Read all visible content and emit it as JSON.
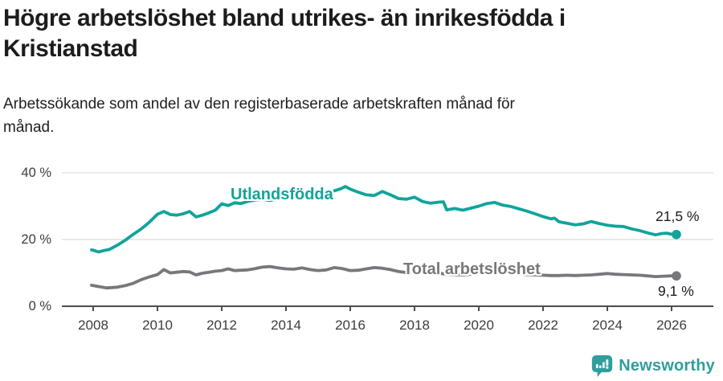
{
  "header": {
    "title": "Högre arbetslöshet bland utrikes- än inrikesfödda i Kristianstad",
    "subtitle": "Arbetssökande som andel av den registerbaserade arbetskraften månad för månad."
  },
  "footer": {
    "brand": "Newsworthy",
    "brand_color": "#2f9e9c",
    "logo_icon": "bar-chart-speech-bubble-icon"
  },
  "colors": {
    "accent_teal": "#10a49b",
    "neutral_gray": "#78777c",
    "axis": "#4d4d4d",
    "gridline": "#dcdcdc",
    "text": "#1c1c1c"
  },
  "chart_data": {
    "type": "line",
    "title": "Högre arbetslöshet bland utrikes- än inrikesfödda i Kristianstad",
    "subtitle": "Arbetssökande som andel av den registerbaserade arbetskraften månad för månad.",
    "unit": "%",
    "xlim": [
      2007.9,
      2026.4
    ],
    "ylim": [
      0,
      40
    ],
    "grid": "horizontal",
    "legend_position": "inline-labels",
    "y_ticks": [
      {
        "value": 0,
        "label": "0 %"
      },
      {
        "value": 20,
        "label": "20 %"
      },
      {
        "value": 40,
        "label": "40 %"
      }
    ],
    "x_ticks": [
      {
        "value": 2008,
        "label": "2008"
      },
      {
        "value": 2010,
        "label": "2010"
      },
      {
        "value": 2012,
        "label": "2012"
      },
      {
        "value": 2014,
        "label": "2014"
      },
      {
        "value": 2016,
        "label": "2016"
      },
      {
        "value": 2018,
        "label": "2018"
      },
      {
        "value": 2020,
        "label": "2020"
      },
      {
        "value": 2022,
        "label": "2022"
      },
      {
        "value": 2024,
        "label": "2024"
      },
      {
        "value": 2026,
        "label": "2026"
      }
    ],
    "series": [
      {
        "name": "Utlandsfödda",
        "color": "#10a49b",
        "end_label": "21,5 %",
        "end_value": 21.5,
        "points": [
          [
            2007.95,
            16.9
          ],
          [
            2008.0,
            16.8
          ],
          [
            2008.17,
            16.3
          ],
          [
            2008.33,
            16.7
          ],
          [
            2008.5,
            17.0
          ],
          [
            2008.75,
            18.3
          ],
          [
            2009.0,
            19.8
          ],
          [
            2009.25,
            21.6
          ],
          [
            2009.5,
            23.2
          ],
          [
            2009.75,
            25.2
          ],
          [
            2010.0,
            27.6
          ],
          [
            2010.2,
            28.4
          ],
          [
            2010.4,
            27.5
          ],
          [
            2010.6,
            27.3
          ],
          [
            2010.8,
            27.7
          ],
          [
            2011.0,
            28.4
          ],
          [
            2011.2,
            26.8
          ],
          [
            2011.4,
            27.3
          ],
          [
            2011.6,
            28.0
          ],
          [
            2011.8,
            28.8
          ],
          [
            2012.0,
            30.7
          ],
          [
            2012.2,
            30.2
          ],
          [
            2012.4,
            31.0
          ],
          [
            2012.6,
            30.8
          ],
          [
            2012.8,
            31.4
          ],
          [
            2013.0,
            31.8
          ],
          [
            2013.25,
            32.1
          ],
          [
            2013.5,
            31.7
          ],
          [
            2013.75,
            32.3
          ],
          [
            2014.0,
            32.6
          ],
          [
            2014.25,
            32.9
          ],
          [
            2014.5,
            33.3
          ],
          [
            2014.75,
            33.1
          ],
          [
            2015.0,
            33.6
          ],
          [
            2015.25,
            34.1
          ],
          [
            2015.5,
            34.6
          ],
          [
            2015.7,
            35.2
          ],
          [
            2015.85,
            35.9
          ],
          [
            2016.0,
            35.1
          ],
          [
            2016.25,
            34.2
          ],
          [
            2016.5,
            33.4
          ],
          [
            2016.75,
            33.2
          ],
          [
            2017.0,
            34.4
          ],
          [
            2017.25,
            33.4
          ],
          [
            2017.5,
            32.3
          ],
          [
            2017.75,
            32.1
          ],
          [
            2018.0,
            32.7
          ],
          [
            2018.25,
            31.4
          ],
          [
            2018.5,
            30.9
          ],
          [
            2018.75,
            31.2
          ],
          [
            2018.9,
            31.3
          ],
          [
            2019.0,
            28.9
          ],
          [
            2019.25,
            29.3
          ],
          [
            2019.5,
            28.8
          ],
          [
            2019.75,
            29.4
          ],
          [
            2020.0,
            30.0
          ],
          [
            2020.25,
            30.8
          ],
          [
            2020.5,
            31.1
          ],
          [
            2020.75,
            30.3
          ],
          [
            2021.0,
            29.9
          ],
          [
            2021.25,
            29.2
          ],
          [
            2021.5,
            28.5
          ],
          [
            2021.75,
            27.7
          ],
          [
            2022.0,
            26.9
          ],
          [
            2022.25,
            26.2
          ],
          [
            2022.35,
            26.4
          ],
          [
            2022.5,
            25.3
          ],
          [
            2022.75,
            24.9
          ],
          [
            2023.0,
            24.4
          ],
          [
            2023.25,
            24.7
          ],
          [
            2023.5,
            25.4
          ],
          [
            2023.75,
            24.8
          ],
          [
            2024.0,
            24.3
          ],
          [
            2024.25,
            24.0
          ],
          [
            2024.5,
            23.9
          ],
          [
            2024.75,
            23.2
          ],
          [
            2025.0,
            22.7
          ],
          [
            2025.25,
            22.0
          ],
          [
            2025.5,
            21.4
          ],
          [
            2025.7,
            21.8
          ],
          [
            2025.85,
            21.9
          ],
          [
            2026.0,
            21.6
          ],
          [
            2026.15,
            21.5
          ]
        ]
      },
      {
        "name": "Total arbetslöshet",
        "color": "#78777c",
        "end_label": "9,1 %",
        "end_value": 9.1,
        "points": [
          [
            2007.95,
            6.3
          ],
          [
            2008.17,
            5.9
          ],
          [
            2008.42,
            5.5
          ],
          [
            2008.75,
            5.7
          ],
          [
            2009.0,
            6.2
          ],
          [
            2009.25,
            6.9
          ],
          [
            2009.5,
            8.0
          ],
          [
            2009.75,
            8.8
          ],
          [
            2010.0,
            9.5
          ],
          [
            2010.2,
            11.0
          ],
          [
            2010.4,
            10.0
          ],
          [
            2010.6,
            10.2
          ],
          [
            2010.8,
            10.4
          ],
          [
            2011.0,
            10.3
          ],
          [
            2011.2,
            9.4
          ],
          [
            2011.4,
            9.9
          ],
          [
            2011.6,
            10.2
          ],
          [
            2011.8,
            10.5
          ],
          [
            2012.0,
            10.7
          ],
          [
            2012.2,
            11.2
          ],
          [
            2012.4,
            10.7
          ],
          [
            2012.6,
            10.8
          ],
          [
            2012.8,
            10.9
          ],
          [
            2013.0,
            11.2
          ],
          [
            2013.25,
            11.7
          ],
          [
            2013.5,
            11.9
          ],
          [
            2013.75,
            11.5
          ],
          [
            2014.0,
            11.2
          ],
          [
            2014.25,
            11.1
          ],
          [
            2014.5,
            11.5
          ],
          [
            2014.75,
            11.0
          ],
          [
            2015.0,
            10.7
          ],
          [
            2015.25,
            10.9
          ],
          [
            2015.5,
            11.6
          ],
          [
            2015.75,
            11.3
          ],
          [
            2016.0,
            10.7
          ],
          [
            2016.25,
            10.8
          ],
          [
            2016.5,
            11.2
          ],
          [
            2016.75,
            11.6
          ],
          [
            2017.0,
            11.4
          ],
          [
            2017.25,
            11.0
          ],
          [
            2017.5,
            10.4
          ],
          [
            2017.75,
            10.1
          ],
          [
            2018.0,
            10.2
          ],
          [
            2018.25,
            10.0
          ],
          [
            2018.5,
            9.8
          ],
          [
            2018.75,
            9.9
          ],
          [
            2019.0,
            9.6
          ],
          [
            2019.25,
            9.5
          ],
          [
            2019.5,
            9.4
          ],
          [
            2019.75,
            9.6
          ],
          [
            2020.0,
            9.8
          ],
          [
            2020.25,
            10.3
          ],
          [
            2020.5,
            10.5
          ],
          [
            2020.75,
            10.2
          ],
          [
            2021.0,
            10.0
          ],
          [
            2021.25,
            9.7
          ],
          [
            2021.5,
            9.5
          ],
          [
            2021.75,
            9.4
          ],
          [
            2022.0,
            9.3
          ],
          [
            2022.25,
            9.2
          ],
          [
            2022.5,
            9.2
          ],
          [
            2022.75,
            9.3
          ],
          [
            2023.0,
            9.2
          ],
          [
            2023.25,
            9.3
          ],
          [
            2023.5,
            9.4
          ],
          [
            2023.75,
            9.6
          ],
          [
            2024.0,
            9.8
          ],
          [
            2024.25,
            9.6
          ],
          [
            2024.5,
            9.5
          ],
          [
            2024.75,
            9.4
          ],
          [
            2025.0,
            9.3
          ],
          [
            2025.25,
            9.1
          ],
          [
            2025.5,
            8.9
          ],
          [
            2025.75,
            9.0
          ],
          [
            2026.0,
            9.1
          ],
          [
            2026.15,
            9.1
          ]
        ]
      }
    ]
  }
}
